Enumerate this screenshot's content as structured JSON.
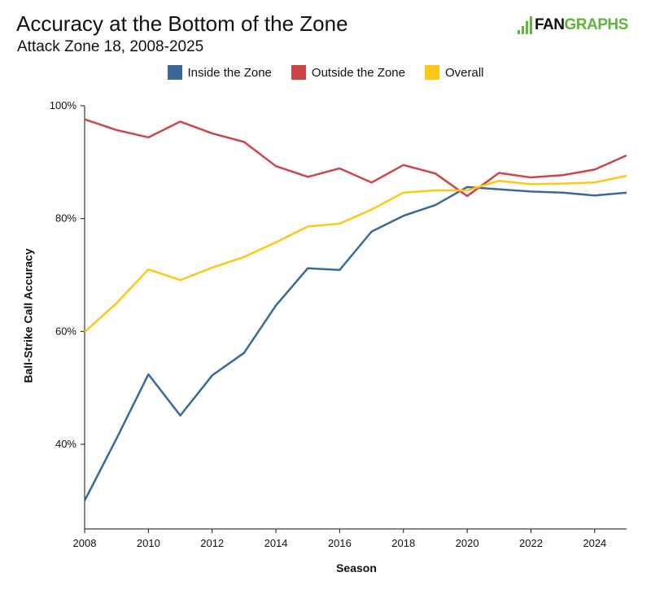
{
  "header": {
    "title": "Accuracy at the Bottom of the Zone",
    "subtitle": "Attack Zone 18, 2008-2025",
    "logo_part1": "FAN",
    "logo_part2": "GRAPHS"
  },
  "colors": {
    "inside": "#3a6899",
    "outside": "#cf4446",
    "overall": "#fdc718",
    "brand": "#5fb43c"
  },
  "chart_data": {
    "type": "line",
    "xlabel": "Season",
    "ylabel": "Ball-Strike Call Accuracy",
    "xlim": [
      2008,
      2025
    ],
    "ylim": [
      0.25,
      1.0
    ],
    "x_ticks": [
      2008,
      2010,
      2012,
      2014,
      2016,
      2018,
      2020,
      2022,
      2024
    ],
    "x_tick_labels": [
      "2008",
      "2010",
      "2012",
      "2014",
      "2016",
      "2018",
      "2020",
      "2022",
      "2024"
    ],
    "y_ticks": [
      0.4,
      0.6,
      0.8,
      1.0
    ],
    "y_tick_labels": [
      "40%",
      "60%",
      "80%",
      "100%"
    ],
    "grid": false,
    "legend_position": "top-center",
    "x": [
      2008,
      2009,
      2010,
      2011,
      2012,
      2013,
      2014,
      2015,
      2016,
      2017,
      2018,
      2019,
      2020,
      2021,
      2022,
      2023,
      2024,
      2025
    ],
    "series": [
      {
        "name": "Inside the Zone",
        "color": "#3a6899",
        "values": [
          0.3,
          0.41,
          0.524,
          0.451,
          0.522,
          0.562,
          0.646,
          0.712,
          0.709,
          0.777,
          0.805,
          0.824,
          0.856,
          0.852,
          0.848,
          0.846,
          0.841,
          0.846
        ]
      },
      {
        "name": "Outside the Zone",
        "color": "#cf4446",
        "values": [
          0.976,
          0.957,
          0.944,
          0.972,
          0.951,
          0.936,
          0.893,
          0.874,
          0.889,
          0.864,
          0.895,
          0.88,
          0.84,
          0.881,
          0.873,
          0.877,
          0.887,
          0.912
        ]
      },
      {
        "name": "Overall",
        "color": "#fdc718",
        "values": [
          0.599,
          0.65,
          0.71,
          0.691,
          0.713,
          0.732,
          0.758,
          0.786,
          0.791,
          0.816,
          0.846,
          0.85,
          0.85,
          0.867,
          0.861,
          0.862,
          0.864,
          0.876
        ]
      }
    ]
  }
}
